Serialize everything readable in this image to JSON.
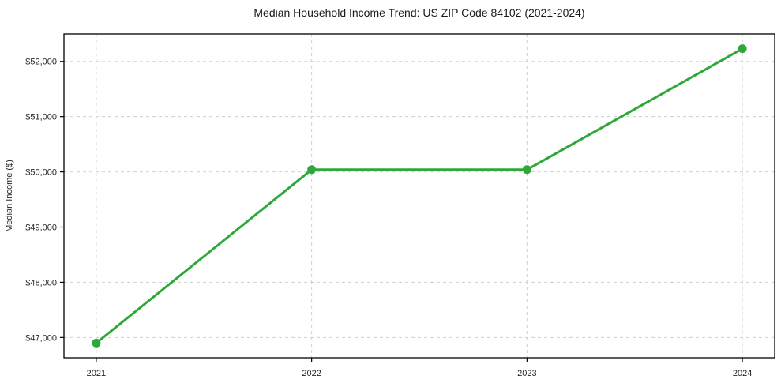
{
  "chart_data": {
    "type": "line",
    "title": "Median Household Income Trend: US ZIP Code 84102 (2021-2024)",
    "xlabel": "",
    "ylabel": "Median Income ($)",
    "categories": [
      "2021",
      "2022",
      "2023",
      "2024"
    ],
    "x": [
      2021,
      2022,
      2023,
      2024
    ],
    "series": [
      {
        "name": "Median household income",
        "values": [
          46900,
          50040,
          50040,
          52230
        ],
        "color": "#2fa83a",
        "marker": "circle"
      }
    ],
    "y_ticks": [
      47000,
      48000,
      49000,
      50000,
      51000,
      52000
    ],
    "y_tick_labels": [
      "$47,000",
      "$48,000",
      "$49,000",
      "$50,000",
      "$51,000",
      "$52,000"
    ],
    "xlim": [
      2020.85,
      2024.15
    ],
    "ylim": [
      46633,
      52497
    ],
    "grid": true,
    "grid_style": "dashed",
    "grid_color": "#d0d0d0",
    "axis_color": "#000000",
    "text_color": "#262626",
    "background_color": "#ffffff",
    "line_width": 3,
    "marker_radius": 5.5,
    "legend_position": "none"
  }
}
